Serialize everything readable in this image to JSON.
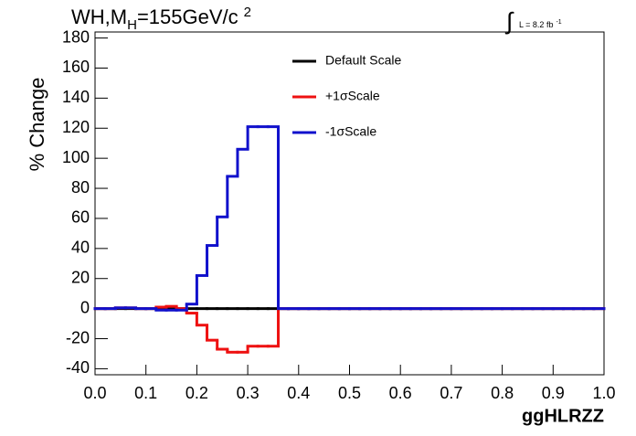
{
  "chart_data": {
    "type": "histogram",
    "title_parts": [
      "WH,M",
      "H",
      "=155GeV/c",
      "2"
    ],
    "annotation": {
      "integral": "∫",
      "text": "L = 8.2 fb",
      "sup": "-1"
    },
    "x_label": "ggHLRZZ",
    "y_label": "% Change",
    "bins": [
      0,
      0.02,
      0.04,
      0.06,
      0.08,
      0.1,
      0.12,
      0.14,
      0.16,
      0.18,
      0.2,
      0.22,
      0.24,
      0.26,
      0.28,
      0.3,
      0.32,
      0.34,
      0.36,
      0.38,
      0.4,
      0.42,
      0.44,
      0.46,
      0.48,
      0.5,
      0.52,
      0.54,
      0.56,
      0.58,
      0.6,
      0.62,
      0.64,
      0.66,
      0.68,
      0.7,
      0.72,
      0.74,
      0.76,
      0.78,
      0.8,
      0.82,
      0.84,
      0.86,
      0.88,
      0.9,
      0.92,
      0.94,
      0.96,
      0.98,
      1.0
    ],
    "series": [
      {
        "name": "Default Scale",
        "color": "#000000",
        "values": [
          0,
          0,
          0,
          0,
          0,
          0,
          0,
          0,
          0,
          0,
          0,
          0,
          0,
          0,
          0,
          0,
          0,
          0,
          0,
          0,
          0,
          0,
          0,
          0,
          0,
          0,
          0,
          0,
          0,
          0,
          0,
          0,
          0,
          0,
          0,
          0,
          0,
          0,
          0,
          0,
          0,
          0,
          0,
          0,
          0,
          0,
          0,
          0,
          0,
          0
        ]
      },
      {
        "name": "+1σScale",
        "color": "#ee1111",
        "values": [
          0,
          0,
          0.5,
          0.5,
          0,
          0,
          1,
          1.5,
          0,
          -3,
          -11,
          -21,
          -27,
          -29,
          -29,
          -25,
          -25,
          -25,
          0,
          0,
          0,
          0,
          0,
          0,
          0,
          0,
          0,
          0,
          0,
          0,
          0,
          0,
          0,
          0,
          0,
          0,
          0,
          0,
          0,
          0,
          0,
          0,
          0,
          0,
          0,
          0,
          0,
          0,
          0,
          0
        ]
      },
      {
        "name": "-1σScale",
        "color": "#1111cc",
        "values": [
          0,
          0,
          0.5,
          0.5,
          0,
          0,
          -1,
          -1,
          -1,
          3,
          22,
          42,
          61,
          88,
          106,
          121,
          121,
          121,
          0,
          0,
          0,
          0,
          0,
          0,
          0,
          0,
          0,
          0,
          0,
          0,
          0,
          0,
          0,
          0,
          0,
          0,
          0,
          0,
          0,
          0,
          0,
          0,
          0,
          0,
          0,
          0,
          0,
          0,
          0,
          0
        ]
      }
    ],
    "xlim": [
      0,
      1
    ],
    "xticks": [
      {
        "value": 0,
        "label": "0.0"
      },
      0.1,
      0.2,
      0.3,
      0.4,
      0.5,
      0.6,
      0.7,
      0.8,
      0.9,
      {
        "value": 1,
        "label": "1.0"
      }
    ],
    "ylim": [
      -44,
      184
    ],
    "yticks": [
      -40,
      -20,
      0,
      20,
      40,
      60,
      80,
      100,
      120,
      140,
      160,
      180
    ],
    "legend": "top"
  }
}
